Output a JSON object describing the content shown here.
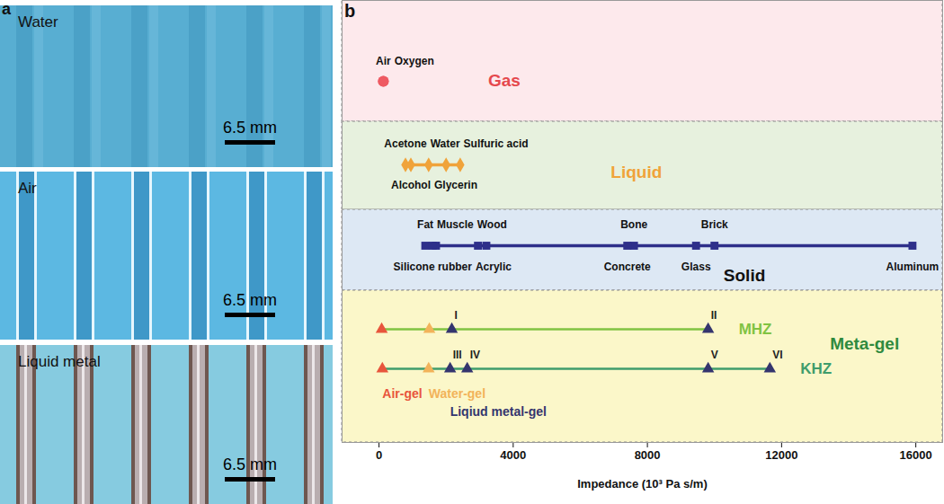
{
  "panel_a": {
    "label": "a",
    "images": [
      {
        "label": "Water",
        "scale_bar": "6.5 mm"
      },
      {
        "label": "Air",
        "scale_bar": "6.5 mm"
      },
      {
        "label": "Liquid metal",
        "scale_bar": "6.5 mm"
      }
    ]
  },
  "chart_data": {
    "type": "range_strip",
    "panel_label": "b",
    "xlabel": "Impedance (10³ Pa s/m)",
    "xlim": [
      -1100,
      16800
    ],
    "xticks": [
      0,
      4000,
      8000,
      12000,
      16000
    ],
    "tick_labels": "x",
    "grid": false,
    "bands": [
      {
        "name": "Gas",
        "color": "#fde9ec",
        "label_color": "#e5484d",
        "marker": "circle",
        "marker_color": "#ee5a62",
        "above": [
          {
            "name": "Air",
            "value": 130
          },
          {
            "name": "Oxygen",
            "value": 130
          }
        ],
        "below": []
      },
      {
        "name": "Liquid",
        "color": "#e7f1de",
        "label_color": "#f0a33a",
        "marker": "diamond",
        "marker_color": "#f0a33a",
        "above": [
          {
            "name": "Acetone",
            "value": 790
          },
          {
            "name": "Water",
            "value": 1480
          },
          {
            "name": "Sulfuric acid",
            "value": 2420
          }
        ],
        "below": [
          {
            "name": "Alcohol",
            "value": 950
          },
          {
            "name": "Glycerin",
            "value": 2000
          }
        ]
      },
      {
        "name": "Solid",
        "color": "#dde8f4",
        "label_color": "#111111",
        "marker": "square",
        "marker_color": "#2e2f8a",
        "above": [
          {
            "name": "Fat",
            "value": 1380
          },
          {
            "name": "Muscle",
            "value": 1700
          },
          {
            "name": "Wood",
            "value": 2950
          },
          {
            "name": "Bone",
            "value": 7600
          },
          {
            "name": "Brick",
            "value": 10000
          }
        ],
        "below": [
          {
            "name": "Silicone rubber",
            "value": 1600
          },
          {
            "name": "Acrylic",
            "value": 3200
          },
          {
            "name": "Concrete",
            "value": 7400
          },
          {
            "name": "Glass",
            "value": 9450
          },
          {
            "name": "Aluminum",
            "value": 15900
          }
        ]
      },
      {
        "name": "Meta-gel",
        "color": "#fbf7c9",
        "label_color": "#2f8a3e",
        "marker": "triangle",
        "gels": [
          {
            "name": "Air-gel",
            "color": "#e8553c"
          },
          {
            "name": "Water-gel",
            "color": "#f2b35a"
          },
          {
            "name": "Liqiud metal-gel",
            "color": "#34356e"
          }
        ],
        "series": [
          {
            "name": "MHZ",
            "color": "#80c342",
            "points": [
              {
                "value": 80,
                "gel": "Air-gel"
              },
              {
                "value": 1500,
                "gel": "Water-gel"
              },
              {
                "value": 2170,
                "gel": "Liqiud metal-gel",
                "label": "I"
              },
              {
                "value": 9810,
                "gel": "Liqiud metal-gel",
                "label": "II"
              }
            ]
          },
          {
            "name": "KHZ",
            "color": "#3f9d6c",
            "points": [
              {
                "value": 100,
                "gel": "Air-gel"
              },
              {
                "value": 1480,
                "gel": "Water-gel"
              },
              {
                "value": 2120,
                "gel": "Liqiud metal-gel",
                "label": "III"
              },
              {
                "value": 2630,
                "gel": "Liqiud metal-gel",
                "label": "IV"
              },
              {
                "value": 9810,
                "gel": "Liqiud metal-gel",
                "label": "V"
              },
              {
                "value": 11650,
                "gel": "Liqiud metal-gel",
                "label": "VI"
              }
            ]
          }
        ]
      }
    ]
  }
}
